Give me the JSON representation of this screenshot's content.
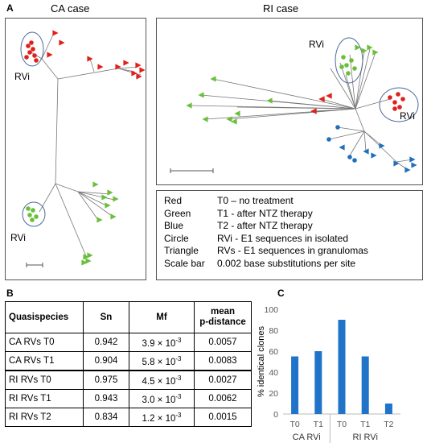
{
  "panel_a": {
    "letter": "A",
    "ca_title": "CA case",
    "ri_title": "RI case",
    "rvi_label": "RVi",
    "colors": {
      "red": "#e0201b",
      "green": "#6abf3a",
      "blue": "#1f6fbd"
    },
    "legend": [
      {
        "key": "Red",
        "value": "T0 – no treatment"
      },
      {
        "key": "Green",
        "value": "T1 - after NTZ therapy"
      },
      {
        "key": "Blue",
        "value": "T2 - after NTZ therapy"
      },
      {
        "key": "Circle",
        "value": "RVi - E1 sequences in isolated"
      },
      {
        "key": "Triangle",
        "value": "RVs - E1 sequences in granulomas"
      },
      {
        "key": "Scale bar",
        "value": "0.002 base substitutions per site"
      }
    ]
  },
  "panel_b": {
    "letter": "B",
    "headers": {
      "quasispecies": "Quasispecies",
      "sn": "Sn",
      "mf": "Mf",
      "pdist_1": "mean",
      "pdist_2": "p-distance"
    },
    "rows": [
      {
        "name": "CA RVs T0",
        "sn": "0.942",
        "mf_base": "3.9 × 10",
        "mf_exp": "-3",
        "pd": "0.0057"
      },
      {
        "name": "CA RVs T1",
        "sn": "0.904",
        "mf_base": "5.8 × 10",
        "mf_exp": "-3",
        "pd": "0.0083"
      },
      {
        "name": "RI RVs T0",
        "sn": "0.975",
        "mf_base": "4.5 × 10",
        "mf_exp": "-3",
        "pd": "0.0027"
      },
      {
        "name": "RI RVs T1",
        "sn": "0.943",
        "mf_base": "3.0 × 10",
        "mf_exp": "-3",
        "pd": "0.0062"
      },
      {
        "name": "RI RVs T2",
        "sn": "0.834",
        "mf_base": "1.2 × 10",
        "mf_exp": "-3",
        "pd": "0.0015"
      }
    ]
  },
  "panel_c": {
    "letter": "C",
    "chart_data": {
      "type": "bar",
      "ylabel": "% identical clones",
      "ylim": [
        0,
        100
      ],
      "yticks": [
        "0",
        "20",
        "40",
        "60",
        "80",
        "100"
      ],
      "categories": [
        "T0",
        "T1",
        "T0",
        "T1",
        "T2"
      ],
      "groups": [
        {
          "name": "CA RVi",
          "count": 2
        },
        {
          "name": "RI RVi",
          "count": 3
        }
      ],
      "values": [
        55,
        60,
        90,
        55,
        10
      ],
      "bar_color": "#1f73c8",
      "grid": false
    }
  }
}
